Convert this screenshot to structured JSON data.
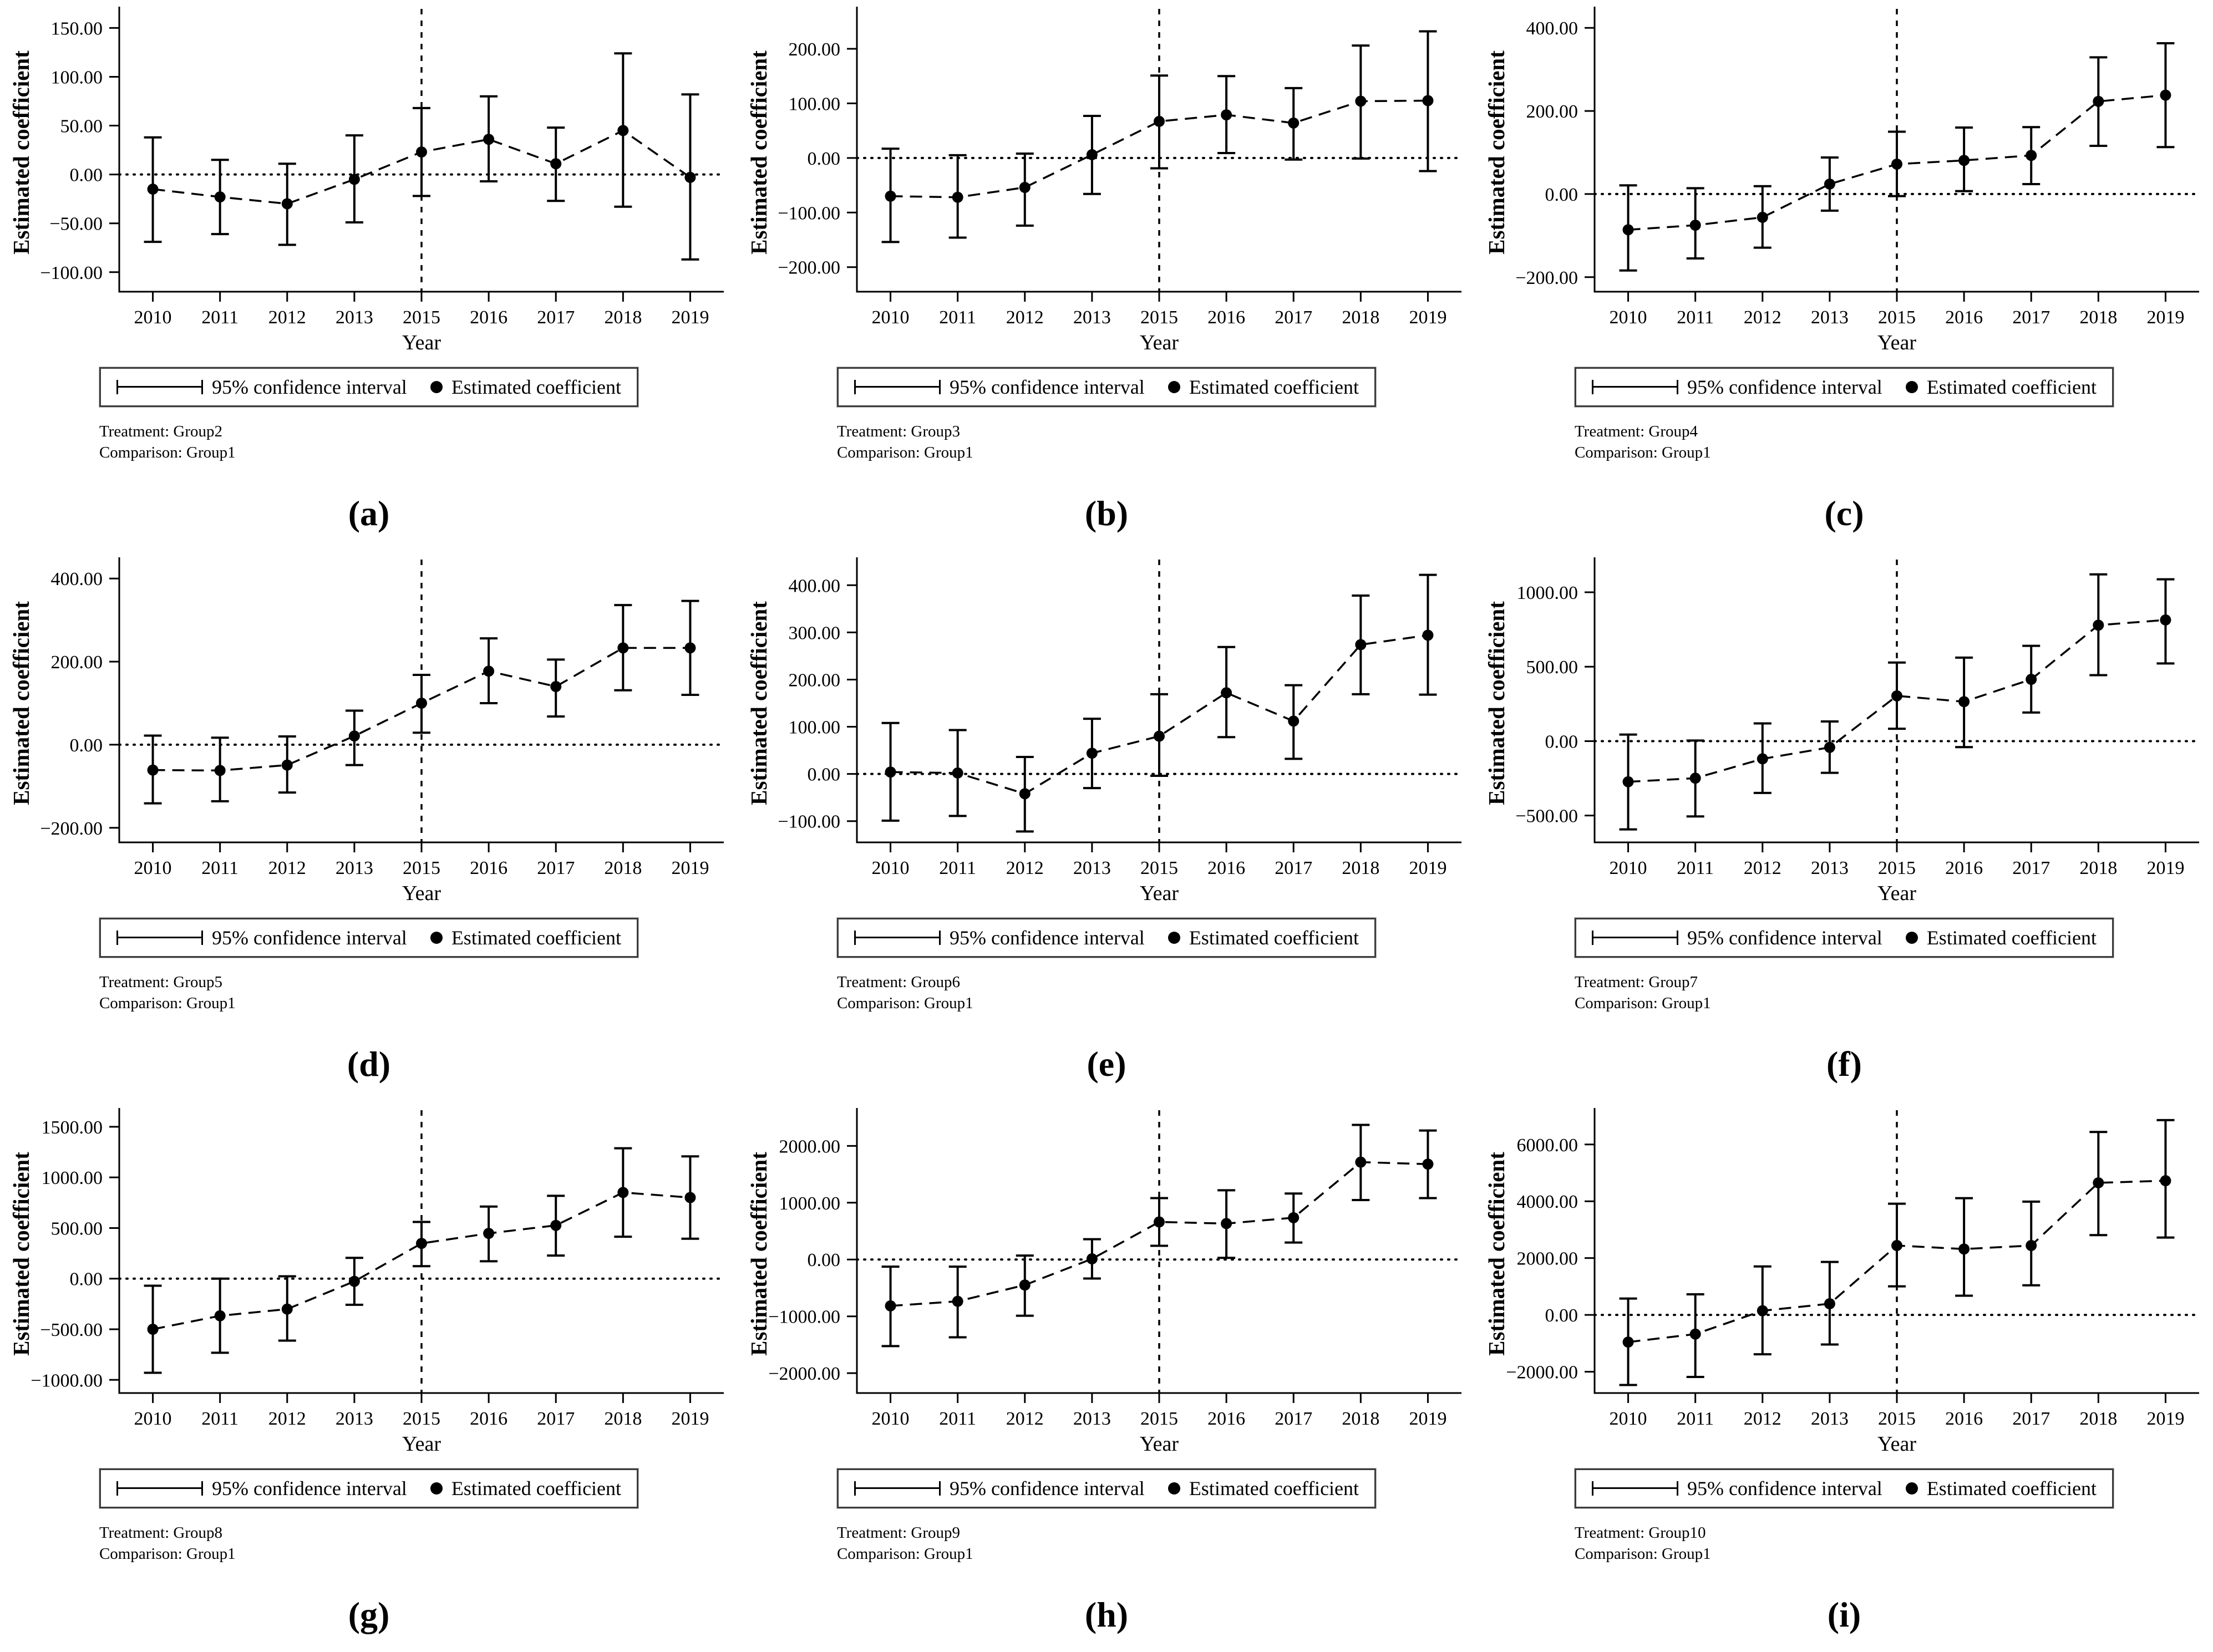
{
  "legend": {
    "ci_label": "95% confidence interval",
    "coef_label": "Estimated coefficient"
  },
  "colors": {
    "ink": "#000000",
    "background": "#ffffff"
  },
  "chart_data": [
    {
      "type": "line",
      "letter": "(a)",
      "treatment_note": "Treatment: Group2",
      "comparison_note": "Comparison: Group1",
      "xlabel": "Year",
      "ylabel": "Estimated coefficient",
      "x_categories": [
        "2010",
        "2011",
        "2012",
        "2013",
        "2015",
        "2016",
        "2017",
        "2018",
        "2019"
      ],
      "yticks": [
        150,
        100,
        50,
        0,
        -50,
        -100
      ],
      "ylim": [
        -120,
        165
      ],
      "vline_at": "2015",
      "hline_at": 0,
      "legend_position": "bottom",
      "grid": false,
      "series": [
        {
          "name": "Estimated coefficient",
          "values": [
            -15,
            -23,
            -30,
            -5,
            23,
            36,
            11,
            45,
            -3
          ]
        },
        {
          "name": "95% CI lower",
          "values": [
            -69,
            -61,
            -72,
            -49,
            -22,
            -7,
            -27,
            -33,
            -87
          ]
        },
        {
          "name": "95% CI upper",
          "values": [
            38,
            15,
            11,
            40,
            68,
            80,
            48,
            124,
            82
          ]
        }
      ]
    },
    {
      "type": "line",
      "letter": "(b)",
      "treatment_note": "Treatment: Group3",
      "comparison_note": "Comparison: Group1",
      "xlabel": "Year",
      "ylabel": "Estimated coefficient",
      "x_categories": [
        "2010",
        "2011",
        "2012",
        "2013",
        "2015",
        "2016",
        "2017",
        "2018",
        "2019"
      ],
      "yticks": [
        200,
        100,
        0,
        -100,
        -200
      ],
      "ylim": [
        -245,
        265
      ],
      "vline_at": "2015",
      "hline_at": 0,
      "legend_position": "bottom",
      "grid": false,
      "series": [
        {
          "name": "Estimated coefficient",
          "values": [
            -70,
            -72,
            -54,
            6,
            67,
            79,
            64,
            104,
            105
          ]
        },
        {
          "name": "95% CI lower",
          "values": [
            -154,
            -146,
            -124,
            -66,
            -19,
            9,
            -3,
            -1,
            -24
          ]
        },
        {
          "name": "95% CI upper",
          "values": [
            17,
            5,
            8,
            77,
            151,
            150,
            128,
            206,
            232
          ]
        }
      ]
    },
    {
      "type": "line",
      "letter": "(c)",
      "treatment_note": "Treatment: Group4",
      "comparison_note": "Comparison: Group1",
      "xlabel": "Year",
      "ylabel": "Estimated coefficient",
      "x_categories": [
        "2010",
        "2011",
        "2012",
        "2013",
        "2015",
        "2016",
        "2017",
        "2018",
        "2019"
      ],
      "yticks": [
        400,
        200,
        0,
        -200
      ],
      "ylim": [
        -235,
        435
      ],
      "vline_at": "2015",
      "hline_at": 0,
      "legend_position": "bottom",
      "grid": false,
      "series": [
        {
          "name": "Estimated coefficient",
          "values": [
            -86,
            -75,
            -56,
            24,
            72,
            81,
            93,
            223,
            238
          ]
        },
        {
          "name": "95% CI lower",
          "values": [
            -184,
            -155,
            -129,
            -40,
            -5,
            7,
            24,
            116,
            113
          ]
        },
        {
          "name": "95% CI upper",
          "values": [
            21,
            14,
            19,
            88,
            150,
            160,
            161,
            329,
            363
          ]
        }
      ]
    },
    {
      "type": "line",
      "letter": "(d)",
      "treatment_note": "Treatment: Group5",
      "comparison_note": "Comparison: Group1",
      "xlabel": "Year",
      "ylabel": "Estimated coefficient",
      "x_categories": [
        "2010",
        "2011",
        "2012",
        "2013",
        "2015",
        "2016",
        "2017",
        "2018",
        "2019"
      ],
      "yticks": [
        400,
        200,
        0,
        -200
      ],
      "ylim": [
        -235,
        435
      ],
      "vline_at": "2015",
      "hline_at": 0,
      "legend_position": "bottom",
      "grid": false,
      "series": [
        {
          "name": "Estimated coefficient",
          "values": [
            -61,
            -62,
            -49,
            21,
            100,
            177,
            140,
            233,
            233
          ]
        },
        {
          "name": "95% CI lower",
          "values": [
            -141,
            -136,
            -115,
            -49,
            29,
            100,
            68,
            131,
            120
          ]
        },
        {
          "name": "95% CI upper",
          "values": [
            22,
            17,
            20,
            82,
            168,
            256,
            205,
            336,
            346
          ]
        }
      ]
    },
    {
      "type": "line",
      "letter": "(e)",
      "treatment_note": "Treatment: Group6",
      "comparison_note": "Comparison: Group1",
      "xlabel": "Year",
      "ylabel": "Estimated coefficient",
      "x_categories": [
        "2010",
        "2011",
        "2012",
        "2013",
        "2015",
        "2016",
        "2017",
        "2018",
        "2019"
      ],
      "yticks": [
        400,
        300,
        200,
        100,
        0,
        -100
      ],
      "ylim": [
        -145,
        445
      ],
      "vline_at": "2015",
      "hline_at": 0,
      "legend_position": "bottom",
      "grid": false,
      "series": [
        {
          "name": "Estimated coefficient",
          "values": [
            4,
            2,
            -42,
            44,
            80,
            172,
            112,
            274,
            294
          ]
        },
        {
          "name": "95% CI lower",
          "values": [
            -99,
            -89,
            -122,
            -30,
            -4,
            78,
            32,
            169,
            168
          ]
        },
        {
          "name": "95% CI upper",
          "values": [
            108,
            93,
            36,
            117,
            169,
            269,
            188,
            378,
            422
          ]
        }
      ]
    },
    {
      "type": "line",
      "letter": "(f)",
      "treatment_note": "Treatment: Group7",
      "comparison_note": "Comparison: Group1",
      "xlabel": "Year",
      "ylabel": "Estimated coefficient",
      "x_categories": [
        "2010",
        "2011",
        "2012",
        "2013",
        "2015",
        "2016",
        "2017",
        "2018",
        "2019"
      ],
      "yticks": [
        1000,
        500,
        0,
        -500
      ],
      "ylim": [
        -680,
        1190
      ],
      "vline_at": "2015",
      "hline_at": 0,
      "legend_position": "bottom",
      "grid": false,
      "series": [
        {
          "name": "Estimated coefficient",
          "values": [
            -273,
            -249,
            -119,
            -42,
            304,
            265,
            415,
            779,
            814
          ]
        },
        {
          "name": "95% CI lower",
          "values": [
            -593,
            -506,
            -348,
            -213,
            83,
            -40,
            192,
            443,
            522
          ]
        },
        {
          "name": "95% CI upper",
          "values": [
            44,
            4,
            119,
            132,
            528,
            561,
            640,
            1120,
            1087
          ]
        }
      ]
    },
    {
      "type": "line",
      "letter": "(g)",
      "treatment_note": "Treatment: Group8",
      "comparison_note": "Comparison: Group1",
      "xlabel": "Year",
      "ylabel": "Estimated coefficient",
      "x_categories": [
        "2010",
        "2011",
        "2012",
        "2013",
        "2015",
        "2016",
        "2017",
        "2018",
        "2019"
      ],
      "yticks": [
        1500,
        1000,
        500,
        0,
        -500,
        -1000
      ],
      "ylim": [
        -1130,
        1620
      ],
      "vline_at": "2015",
      "hline_at": 0,
      "legend_position": "bottom",
      "grid": false,
      "series": [
        {
          "name": "Estimated coefficient",
          "values": [
            -500,
            -367,
            -301,
            -27,
            348,
            447,
            526,
            851,
            801
          ]
        },
        {
          "name": "95% CI lower",
          "values": [
            -930,
            -732,
            -612,
            -258,
            123,
            172,
            228,
            414,
            394
          ]
        },
        {
          "name": "95% CI upper",
          "values": [
            -70,
            0,
            23,
            205,
            560,
            712,
            818,
            1288,
            1208
          ]
        }
      ]
    },
    {
      "type": "line",
      "letter": "(h)",
      "treatment_note": "Treatment: Group9",
      "comparison_note": "Comparison: Group1",
      "xlabel": "Year",
      "ylabel": "Estimated coefficient",
      "x_categories": [
        "2010",
        "2011",
        "2012",
        "2013",
        "2015",
        "2016",
        "2017",
        "2018",
        "2019"
      ],
      "yticks": [
        2000,
        1000,
        0,
        -1000,
        -2000
      ],
      "ylim": [
        -2350,
        2550
      ],
      "vline_at": "2015",
      "hline_at": 0,
      "legend_position": "bottom",
      "grid": false,
      "series": [
        {
          "name": "Estimated coefficient",
          "values": [
            -816,
            -736,
            -449,
            12,
            661,
            633,
            736,
            1714,
            1679
          ]
        },
        {
          "name": "95% CI lower",
          "values": [
            -1524,
            -1369,
            -989,
            -334,
            242,
            29,
            299,
            1047,
            1081
          ]
        },
        {
          "name": "95% CI upper",
          "values": [
            -126,
            -126,
            69,
            357,
            1081,
            1219,
            1162,
            2369,
            2271
          ]
        }
      ]
    },
    {
      "type": "line",
      "letter": "(i)",
      "treatment_note": "Treatment: Group10",
      "comparison_note": "Comparison: Group1",
      "xlabel": "Year",
      "ylabel": "Estimated coefficient",
      "x_categories": [
        "2010",
        "2011",
        "2012",
        "2013",
        "2015",
        "2016",
        "2017",
        "2018",
        "2019"
      ],
      "yticks": [
        6000,
        4000,
        2000,
        0,
        -2000
      ],
      "ylim": [
        -2750,
        7050
      ],
      "vline_at": "2015",
      "hline_at": 0,
      "legend_position": "bottom",
      "grid": false,
      "series": [
        {
          "name": "Estimated coefficient",
          "values": [
            -957,
            -675,
            147,
            393,
            2442,
            2319,
            2442,
            4650,
            4724
          ]
        },
        {
          "name": "95% CI lower",
          "values": [
            -2466,
            -2184,
            -1387,
            -1043,
            1006,
            675,
            1043,
            2810,
            2724
          ]
        },
        {
          "name": "95% CI upper",
          "values": [
            577,
            724,
            1706,
            1865,
            3914,
            4110,
            3988,
            6441,
            6858
          ]
        }
      ]
    }
  ]
}
